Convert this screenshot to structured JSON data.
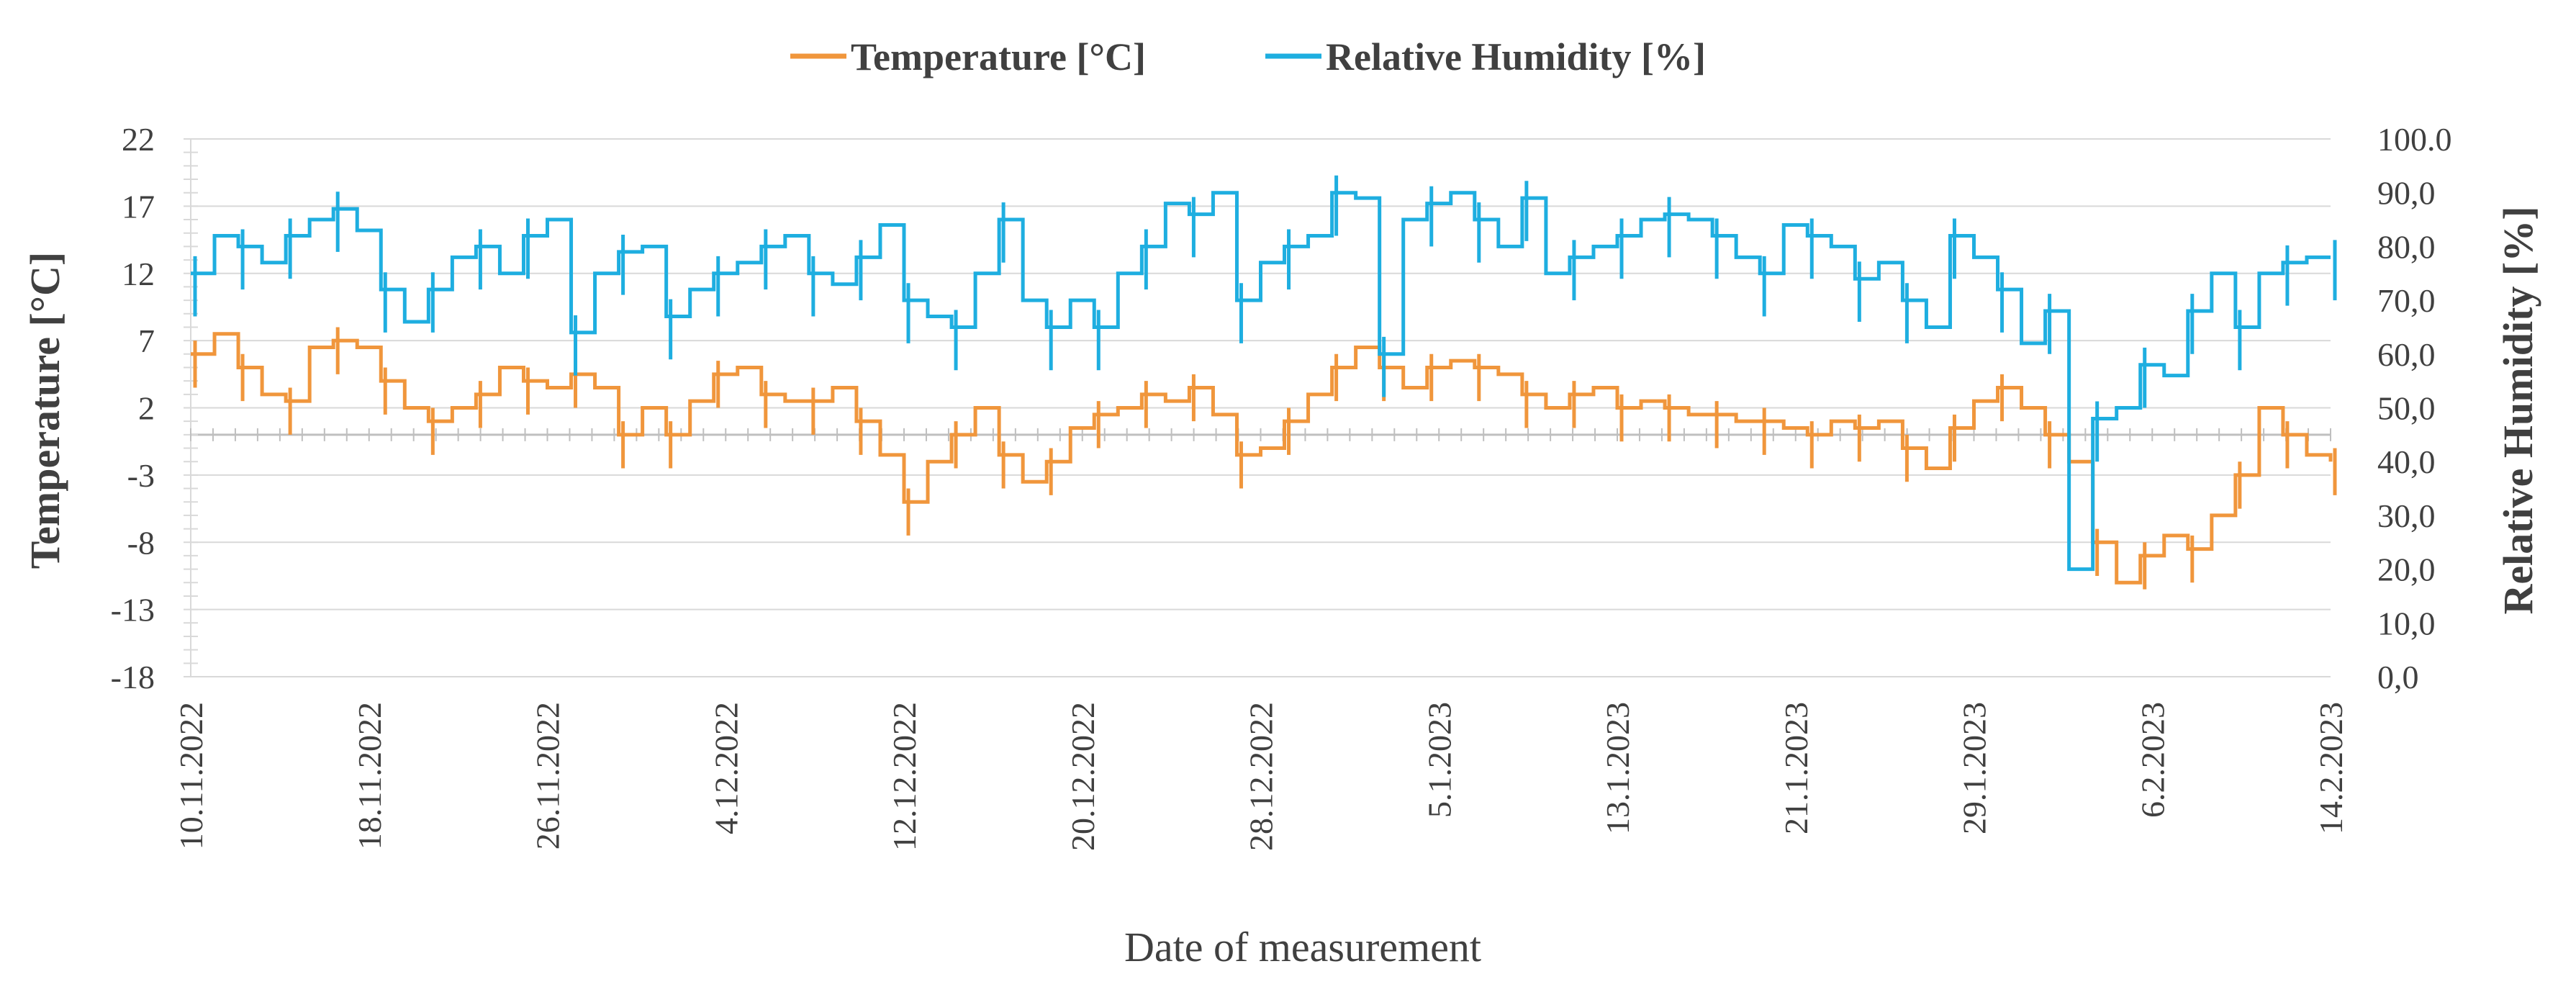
{
  "chart_data": {
    "type": "line",
    "title": "",
    "xlabel": "Date of measurement",
    "ylabel_left": "Temperature [°C]",
    "ylabel_right": "Relative Humidity [%]",
    "left_ylim": [
      -18,
      22
    ],
    "left_ticks": [
      "22",
      "17",
      "12",
      "7",
      "2",
      "-3",
      "-8",
      "-13",
      "-18"
    ],
    "right_ylim": [
      0,
      100
    ],
    "right_ticks": [
      "100.0",
      "90,0",
      "80,0",
      "70,0",
      "60,0",
      "50,0",
      "40,0",
      "30,0",
      "20,0",
      "10,0",
      "0,0"
    ],
    "x_ticks": [
      "10.11.2022",
      "18.11.2022",
      "26.11.2022",
      "4.12.2022",
      "12.12.2022",
      "20.12.2022",
      "28.12.2022",
      "5.1.2023",
      "13.1.2023",
      "21.1.2023",
      "29.1.2023",
      "6.2.2023",
      "14.2.2023"
    ],
    "grid": true,
    "legend_position": "top-center",
    "series": [
      {
        "name": "Temperature [°C]",
        "axis": "left",
        "color": "#F0963C",
        "values": [
          6.0,
          7.5,
          5.0,
          3.0,
          2.5,
          6.5,
          7.0,
          6.5,
          4.0,
          2.0,
          1.0,
          2.0,
          3.0,
          5.0,
          4.0,
          3.5,
          4.5,
          3.5,
          0.0,
          2.0,
          0.0,
          2.5,
          4.5,
          5.0,
          3.0,
          2.5,
          2.5,
          3.5,
          1.0,
          -1.5,
          -5.0,
          -2.0,
          0.0,
          2.0,
          -1.5,
          -3.5,
          -2.0,
          0.5,
          1.5,
          2.0,
          3.0,
          2.5,
          3.5,
          1.5,
          -1.5,
          -1.0,
          1.0,
          3.0,
          5.0,
          6.5,
          5.0,
          3.5,
          5.0,
          5.5,
          5.0,
          4.5,
          3.0,
          2.0,
          3.0,
          3.5,
          2.0,
          2.5,
          2.0,
          1.5,
          1.5,
          1.0,
          1.0,
          0.5,
          0.0,
          1.0,
          0.5,
          1.0,
          -1.0,
          -2.5,
          0.5,
          2.5,
          3.5,
          2.0,
          0.0,
          -2.0,
          -8.0,
          -11.0,
          -9.0,
          -7.5,
          -8.5,
          -6.0,
          -3.0,
          2.0,
          0.0,
          -1.5,
          -2.0
        ]
      },
      {
        "name": "Relative Humidity [%]",
        "axis": "right",
        "color": "#1EAEE0",
        "values": [
          75,
          82,
          80,
          77,
          82,
          85,
          87,
          83,
          72,
          66,
          72,
          78,
          80,
          75,
          82,
          85,
          64,
          75,
          79,
          80,
          67,
          72,
          75,
          77,
          80,
          82,
          75,
          73,
          78,
          84,
          70,
          67,
          65,
          75,
          85,
          70,
          65,
          70,
          65,
          75,
          80,
          88,
          86,
          90,
          70,
          77,
          80,
          82,
          90,
          89,
          60,
          85,
          88,
          90,
          85,
          80,
          89,
          75,
          78,
          80,
          82,
          85,
          86,
          85,
          82,
          78,
          75,
          84,
          82,
          80,
          74,
          77,
          70,
          65,
          82,
          78,
          72,
          62,
          68,
          20,
          48,
          50,
          58,
          56,
          68,
          75,
          65,
          75,
          77,
          78,
          78
        ]
      }
    ]
  },
  "legend": {
    "items": [
      {
        "label": "Temperature [°C]",
        "color": "#F0963C"
      },
      {
        "label": "Relative Humidity [%]",
        "color": "#1EAEE0"
      }
    ]
  }
}
